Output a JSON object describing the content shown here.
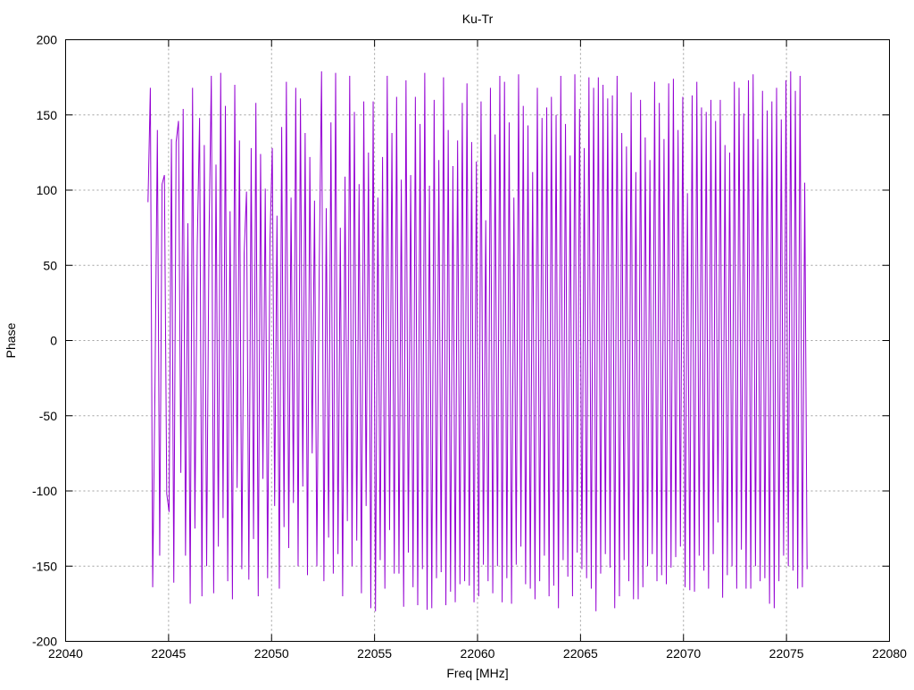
{
  "chart_data": {
    "type": "line",
    "title": "Ku-Tr",
    "xlabel": "Freq [MHz]",
    "ylabel": "Phase",
    "xlim": [
      22040,
      22080
    ],
    "ylim": [
      -200,
      200
    ],
    "xticks": [
      22040,
      22045,
      22050,
      22055,
      22060,
      22065,
      22070,
      22075,
      22080
    ],
    "yticks": [
      -200,
      -150,
      -100,
      -50,
      0,
      50,
      100,
      150,
      200
    ],
    "grid": true,
    "series": [
      {
        "color": "#9400d3",
        "x_start": 22044.0,
        "x_end": 22076.0,
        "values": [
          92,
          168,
          -164,
          -28,
          140,
          -143,
          104,
          110,
          -102,
          -114,
          134,
          -161,
          132,
          146,
          -88,
          154,
          -143,
          78,
          -175,
          168,
          -125,
          63,
          148,
          -170,
          130,
          -150,
          66,
          176,
          -168,
          117,
          -137,
          178,
          -118,
          156,
          -160,
          86,
          -172,
          170,
          -98,
          133,
          -152,
          58,
          99,
          -159,
          128,
          -132,
          158,
          -170,
          124,
          -92,
          101,
          -158,
          66,
          128,
          -110,
          83,
          -165,
          142,
          -124,
          172,
          -138,
          95,
          -108,
          168,
          -150,
          161,
          -97,
          138,
          -156,
          122,
          -75,
          93,
          -150,
          47,
          179,
          -160,
          88,
          -131,
          145,
          -155,
          178,
          -142,
          75,
          -170,
          109,
          -120,
          176,
          -150,
          152,
          -133,
          104,
          -168,
          159,
          -110,
          125,
          -178,
          159,
          -180,
          95,
          -146,
          122,
          -165,
          176,
          -126,
          138,
          -155,
          162,
          -155,
          107,
          -177,
          173,
          -141,
          110,
          -164,
          162,
          -176,
          144,
          -152,
          178,
          -179,
          103,
          -178,
          160,
          -158,
          120,
          -154,
          175,
          -176,
          140,
          -167,
          116,
          -174,
          133,
          -162,
          158,
          -160,
          171,
          -163,
          132,
          -174,
          119,
          -170,
          159,
          -149,
          80,
          -160,
          168,
          -168,
          137,
          -150,
          176,
          -174,
          172,
          -158,
          145,
          -175,
          95,
          -149,
          177,
          -137,
          156,
          -162,
          143,
          -165,
          112,
          -172,
          168,
          -160,
          148,
          -143,
          155,
          -170,
          162,
          -163,
          150,
          -178,
          176,
          -146,
          144,
          -157,
          123,
          -170,
          177,
          -141,
          154,
          -152,
          128,
          -158,
          175,
          -165,
          168,
          -180,
          175,
          -155,
          170,
          -142,
          161,
          -151,
          163,
          -178,
          176,
          -170,
          138,
          -146,
          129,
          -160,
          165,
          -172,
          112,
          -172,
          160,
          -164,
          135,
          -150,
          120,
          -142,
          172,
          -160,
          158,
          -156,
          134,
          -162,
          171,
          -151,
          174,
          -144,
          140,
          -137,
          162,
          -164,
          98,
          -166,
          163,
          -167,
          172,
          -143,
          155,
          -153,
          152,
          -165,
          160,
          -142,
          146,
          -121,
          160,
          -171,
          130,
          -156,
          125,
          -150,
          172,
          -165,
          168,
          -139,
          151,
          -165,
          173,
          -165,
          177,
          -150,
          134,
          -160,
          166,
          -158,
          153,
          -175,
          159,
          -178,
          168,
          -160,
          147,
          -143,
          173,
          -150,
          179,
          -153,
          166,
          -165,
          176,
          -164,
          105,
          -152
        ]
      }
    ]
  }
}
